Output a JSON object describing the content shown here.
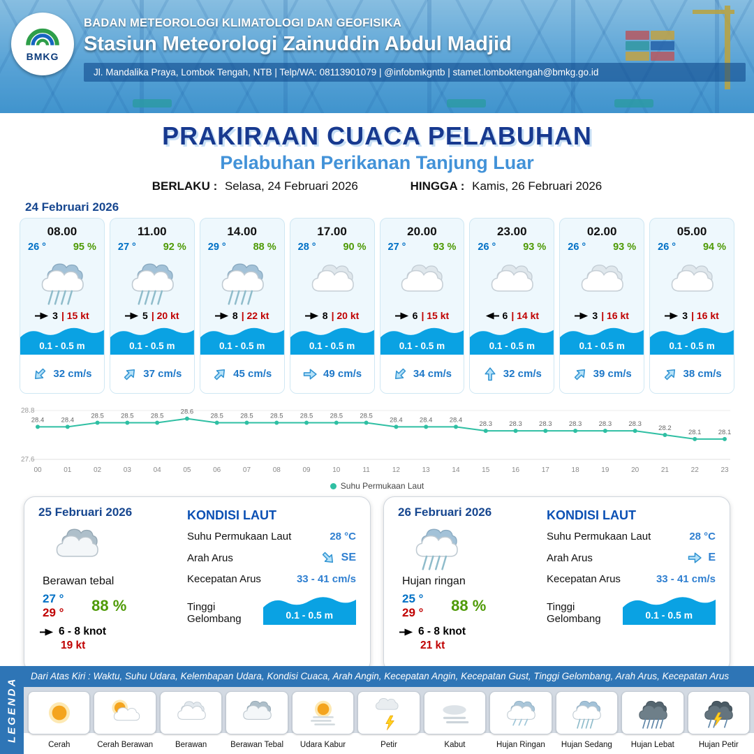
{
  "header": {
    "logo_text": "BMKG",
    "org": "BADAN METEOROLOGI KLIMATOLOGI DAN GEOFISIKA",
    "station": "Stasiun Meteorologi Zainuddin Abdul Madjid",
    "address": "Jl. Mandalika Praya, Lombok Tengah, NTB | Telp/WA: 08113901079 | @infobmkgntb | stamet.lomboktengah@bmkg.go.id"
  },
  "title": {
    "main": "PRAKIRAAN CUACA PELABUHAN",
    "subtitle": "Pelabuhan Perikanan Tanjung Luar",
    "valid_label": "BERLAKU :",
    "valid_value": "Selasa, 24 Februari 2026",
    "until_label": "HINGGA :",
    "until_value": "Kamis, 26 Februari 2026"
  },
  "forecast": {
    "date": "24 Februari 2026",
    "cards": [
      {
        "time": "08.00",
        "temp": "26 °",
        "humidity": "95 %",
        "icon": "rain",
        "wind_speed": "3",
        "gust": "| 15 kt",
        "wind_from": "E",
        "wave": "0.1 - 0.5 m",
        "current": "32 cm/s",
        "current_dir": "SW"
      },
      {
        "time": "11.00",
        "temp": "27 °",
        "humidity": "92 %",
        "icon": "rain",
        "wind_speed": "5",
        "gust": "| 20 kt",
        "wind_from": "E",
        "wave": "0.1 - 0.5 m",
        "current": "37 cm/s",
        "current_dir": "NE"
      },
      {
        "time": "14.00",
        "temp": "29 °",
        "humidity": "88 %",
        "icon": "rain",
        "wind_speed": "8",
        "gust": "| 22 kt",
        "wind_from": "E",
        "wave": "0.1 - 0.5 m",
        "current": "45 cm/s",
        "current_dir": "NE"
      },
      {
        "time": "17.00",
        "temp": "28 °",
        "humidity": "90 %",
        "icon": "cloudy",
        "wind_speed": "8",
        "gust": "| 20 kt",
        "wind_from": "E",
        "wave": "0.1 - 0.5 m",
        "current": "49 cm/s",
        "current_dir": "E"
      },
      {
        "time": "20.00",
        "temp": "27 °",
        "humidity": "93 %",
        "icon": "cloudy",
        "wind_speed": "6",
        "gust": "| 15 kt",
        "wind_from": "E",
        "wave": "0.1 - 0.5 m",
        "current": "34 cm/s",
        "current_dir": "SW"
      },
      {
        "time": "23.00",
        "temp": "26 °",
        "humidity": "93 %",
        "icon": "cloudy",
        "wind_speed": "6",
        "gust": "| 14 kt",
        "wind_from": "W",
        "wave": "0.1 - 0.5 m",
        "current": "32 cm/s",
        "current_dir": "N"
      },
      {
        "time": "02.00",
        "temp": "26 °",
        "humidity": "93 %",
        "icon": "cloudy",
        "wind_speed": "3",
        "gust": "| 16 kt",
        "wind_from": "E",
        "wave": "0.1 - 0.5 m",
        "current": "39 cm/s",
        "current_dir": "NE"
      },
      {
        "time": "05.00",
        "temp": "26 °",
        "humidity": "94 %",
        "icon": "cloudy",
        "wind_speed": "3",
        "gust": "| 16 kt",
        "wind_from": "E",
        "wave": "0.1 - 0.5 m",
        "current": "38 cm/s",
        "current_dir": "NE"
      }
    ]
  },
  "chart_data": {
    "type": "line",
    "title": "Suhu Permukaan Laut",
    "series_label": "Suhu Permukaan Laut",
    "x": [
      "00",
      "01",
      "02",
      "03",
      "04",
      "05",
      "06",
      "07",
      "08",
      "09",
      "10",
      "11",
      "12",
      "13",
      "14",
      "15",
      "16",
      "17",
      "18",
      "19",
      "20",
      "21",
      "22",
      "23"
    ],
    "values": [
      28.4,
      28.4,
      28.5,
      28.5,
      28.5,
      28.6,
      28.5,
      28.5,
      28.5,
      28.5,
      28.5,
      28.5,
      28.4,
      28.4,
      28.4,
      28.3,
      28.3,
      28.3,
      28.3,
      28.3,
      28.3,
      28.2,
      28.1,
      28.1
    ],
    "ylim": [
      27.6,
      28.8
    ],
    "line_color": "#2fbfa3",
    "legend_position": "bottom",
    "grid": false
  },
  "daily": [
    {
      "date": "25 Februari 2026",
      "icon": "cloud-thick",
      "condition": "Berawan tebal",
      "temp_min": "27 °",
      "temp_max": "29 °",
      "humidity": "88 %",
      "wind": "6 - 8 knot",
      "wind_from": "E",
      "gust": "19 kt",
      "sea": {
        "title": "KONDISI LAUT",
        "sst_label": "Suhu Permukaan Laut",
        "sst": "28 °C",
        "dir_label": "Arah Arus",
        "dir": "SE",
        "speed_label": "Kecepatan Arus",
        "speed": "33 - 41 cm/s",
        "wave_label": "Tinggi Gelombang",
        "wave": "0.1 - 0.5 m"
      }
    },
    {
      "date": "26 Februari 2026",
      "icon": "rain",
      "condition": "Hujan ringan",
      "temp_min": "25 °",
      "temp_max": "29 °",
      "humidity": "88 %",
      "wind": "6 - 8 knot",
      "wind_from": "E",
      "gust": "21 kt",
      "sea": {
        "title": "KONDISI LAUT",
        "sst_label": "Suhu Permukaan Laut",
        "sst": "28 °C",
        "dir_label": "Arah Arus",
        "dir": "E",
        "speed_label": "Kecepatan Arus",
        "speed": "33 - 41 cm/s",
        "wave_label": "Tinggi Gelombang",
        "wave": "0.1 - 0.5 m"
      }
    }
  ],
  "legend": {
    "title": "LEGENDA",
    "note": "Dari Atas Kiri : Waktu, Suhu Udara, Kelembapan Udara, Kondisi Cuaca, Arah Angin, Kecepatan Angin, Kecepatan Gust, Tinggi Gelombang, Arah Arus, Kecepatan Arus",
    "items": [
      {
        "label": "Cerah",
        "icon": "sun"
      },
      {
        "label": "Cerah Berawan",
        "icon": "sun-cloud"
      },
      {
        "label": "Berawan",
        "icon": "cloud"
      },
      {
        "label": "Berawan Tebal",
        "icon": "cloud-thick"
      },
      {
        "label": "Udara Kabur",
        "icon": "haze"
      },
      {
        "label": "Petir",
        "icon": "petir"
      },
      {
        "label": "Kabut",
        "icon": "fog"
      },
      {
        "label": "Hujan Ringan",
        "icon": "rain-light"
      },
      {
        "label": "Hujan Sedang",
        "icon": "rain"
      },
      {
        "label": "Hujan Lebat",
        "icon": "rain-heavy"
      },
      {
        "label": "Hujan Petir",
        "icon": "rain-lightning"
      }
    ]
  },
  "colors": {
    "title_navy": "#17398f",
    "subtitle_blue": "#4292d8",
    "temp_blue": "#0070c5",
    "humidity_green": "#4e9a06",
    "gust_red": "#c00000",
    "wave_blue": "#0aa2e3",
    "footer_blue": "#2e75b6"
  }
}
